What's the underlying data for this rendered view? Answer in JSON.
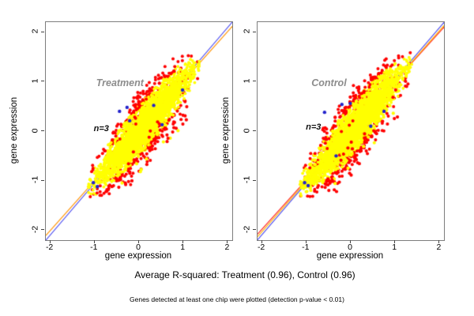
{
  "figure": {
    "caption": "Average R-squared: Treatment (0.96), Control (0.96)",
    "footnote": "Genes detected at least one chip were plotted (detection p-value < 0.01)"
  },
  "chart_data": {
    "type": "scatter",
    "xlabel": "gene expression",
    "ylabel": "gene expression",
    "x_ticks": [
      -2,
      -1,
      0,
      1,
      2
    ],
    "y_ticks": [
      -2,
      -1,
      0,
      1,
      2
    ],
    "xlim": [
      -2.1,
      2.1
    ],
    "ylim": [
      -2.2,
      2.2
    ],
    "grid": false,
    "legend": "none",
    "colors": {
      "core_points": "#FFFF00",
      "edge_points": "#FF0000",
      "sparse_points": "#2323CB",
      "box_border": "#7d7d7d"
    },
    "cloud": {
      "extent": [
        -1.15,
        1.38
      ],
      "mean": 0.1,
      "sigma_along": 0.5,
      "sigma_perp": 0.21,
      "n_under_red": 520,
      "n_core": 2800,
      "n_edge_red": 190,
      "n_edge_yellow": 70,
      "n_outliers_low": 46,
      "n_outliers_high": 12
    },
    "panels": [
      {
        "title": "Treatment",
        "annotation": "n=3",
        "r_squared": 0.96,
        "title_xy": [
          -0.43,
          0.97
        ],
        "annotation_xy": [
          -0.85,
          0.05
        ],
        "seed": 41,
        "lines": [
          {
            "color": "#FF9100",
            "slope": 1.005,
            "intercept": 0.005
          },
          {
            "color": "#4A4AEF",
            "slope": 1.048,
            "intercept": 0.0
          }
        ],
        "sparse_points": [
          [
            -0.27,
            0.48
          ],
          [
            -0.44,
            0.4
          ],
          [
            -0.21,
            0.21
          ],
          [
            0.98,
            0.83
          ],
          [
            -1.03,
            -1.04
          ],
          [
            -0.94,
            -1.12
          ],
          [
            0.33,
            0.52
          ],
          [
            0.52,
            0.13
          ]
        ]
      },
      {
        "title": "Control",
        "annotation": "n=3",
        "r_squared": 0.96,
        "title_xy": [
          -0.49,
          0.97
        ],
        "annotation_xy": [
          -0.84,
          0.08
        ],
        "seed": 97,
        "lines": [
          {
            "color": "#FF2020",
            "slope": 0.995,
            "intercept": 0.01
          },
          {
            "color": "#FFB300",
            "slope": 1.015,
            "intercept": 0.0
          },
          {
            "color": "#4A4AEF",
            "slope": 1.045,
            "intercept": 0.0
          }
        ],
        "sparse_points": [
          [
            -0.2,
            0.54
          ],
          [
            -0.59,
            0.38
          ],
          [
            -0.01,
            0.56
          ],
          [
            -1.04,
            -1.04
          ],
          [
            -0.96,
            -1.1
          ],
          [
            0.45,
            0.1
          ],
          [
            0.75,
            0.4
          ],
          [
            -0.33,
            -0.5
          ]
        ]
      }
    ],
    "layout": {
      "panel_boxes": [
        [
          57,
          27,
          236,
          276
        ],
        [
          325,
          27,
          236,
          276
        ]
      ]
    }
  }
}
